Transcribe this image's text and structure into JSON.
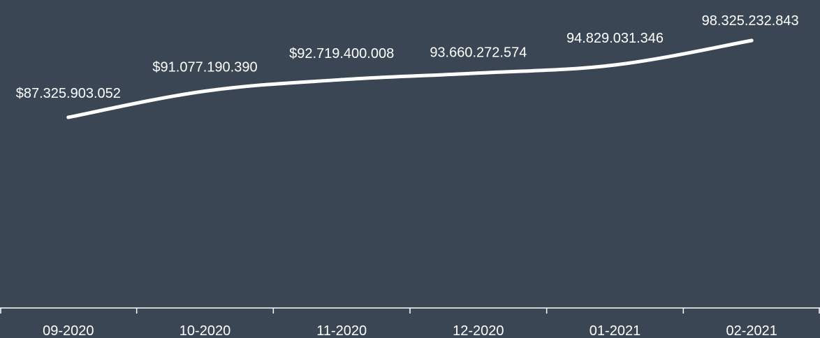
{
  "theme": {
    "background": "#3a4654",
    "line": "#ffffff",
    "text": "#ffffff",
    "axis": "#ffffff"
  },
  "chart_data": {
    "type": "line",
    "categories": [
      "09-2020",
      "10-2020",
      "11-2020",
      "12-2020",
      "01-2021",
      "02-2021"
    ],
    "values": [
      87325903052,
      91077190390,
      92719400008,
      93660272574,
      94829031346,
      98325232843
    ],
    "data_labels": [
      "$87.325.903.052",
      "$91.077.190.390",
      "$92.719.400.008",
      "93.660.272.574",
      "94.829.031.346",
      "98.325.232.843"
    ],
    "title": "",
    "xlabel": "",
    "ylabel": "",
    "grid": false,
    "legend": "none"
  }
}
